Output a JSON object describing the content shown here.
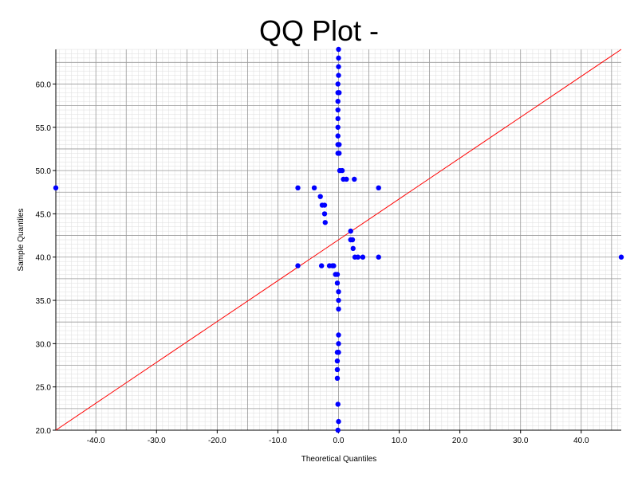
{
  "chart_data": {
    "type": "scatter",
    "title": "QQ Plot -",
    "xlabel": "Theoretical Quantiles",
    "ylabel": "Sample Quantiles",
    "xlim": [
      -46.6,
      46.6
    ],
    "ylim": [
      20.0,
      64.0
    ],
    "grid": true,
    "x_ticks": [
      -40.0,
      -30.0,
      -20.0,
      -10.0,
      0.0,
      10.0,
      20.0,
      30.0,
      40.0
    ],
    "x_tick_labels": [
      "-40.0",
      "-30.0",
      "-20.0",
      "-10.0",
      "0.0",
      "10.0",
      "20.0",
      "30.0",
      "40.0"
    ],
    "y_ticks": [
      20.0,
      25.0,
      30.0,
      35.0,
      40.0,
      45.0,
      50.0,
      55.0,
      60.0
    ],
    "y_tick_labels": [
      "20.0",
      "25.0",
      "30.0",
      "35.0",
      "40.0",
      "45.0",
      "50.0",
      "55.0",
      "60.0"
    ],
    "colors": {
      "points": "#0000ff",
      "reference_line": "#ff0000",
      "major_grid": "#999999",
      "minor_grid": "#dddddd"
    },
    "reference_line": {
      "x": [
        -46.6,
        46.6
      ],
      "y": [
        20.0,
        64.0
      ]
    },
    "points": [
      {
        "x": -46.6,
        "y": 48
      },
      {
        "x": 46.6,
        "y": 40
      },
      {
        "x": -6.7,
        "y": 48
      },
      {
        "x": -6.7,
        "y": 39
      },
      {
        "x": -4.0,
        "y": 48
      },
      {
        "x": -3.0,
        "y": 47
      },
      {
        "x": -2.7,
        "y": 46
      },
      {
        "x": -2.3,
        "y": 46
      },
      {
        "x": -2.3,
        "y": 45
      },
      {
        "x": -2.2,
        "y": 44
      },
      {
        "x": -2.8,
        "y": 39
      },
      {
        "x": -1.5,
        "y": 39
      },
      {
        "x": -1.0,
        "y": 39
      },
      {
        "x": -0.8,
        "y": 39
      },
      {
        "x": -0.5,
        "y": 38
      },
      {
        "x": -0.2,
        "y": 38
      },
      {
        "x": -0.2,
        "y": 37
      },
      {
        "x": 0.0,
        "y": 36
      },
      {
        "x": 0.0,
        "y": 35
      },
      {
        "x": 0.0,
        "y": 34
      },
      {
        "x": 0.0,
        "y": 31
      },
      {
        "x": 0.0,
        "y": 30
      },
      {
        "x": -0.2,
        "y": 29
      },
      {
        "x": 0.0,
        "y": 29
      },
      {
        "x": -0.2,
        "y": 28
      },
      {
        "x": -0.2,
        "y": 27
      },
      {
        "x": -0.2,
        "y": 26
      },
      {
        "x": -0.1,
        "y": 23
      },
      {
        "x": 0.0,
        "y": 21
      },
      {
        "x": -0.1,
        "y": 20
      },
      {
        "x": 0.0,
        "y": 64
      },
      {
        "x": 0.0,
        "y": 63
      },
      {
        "x": 0.0,
        "y": 62
      },
      {
        "x": 0.0,
        "y": 61
      },
      {
        "x": -0.1,
        "y": 60
      },
      {
        "x": -0.1,
        "y": 59
      },
      {
        "x": 0.1,
        "y": 59
      },
      {
        "x": -0.1,
        "y": 58
      },
      {
        "x": -0.1,
        "y": 57
      },
      {
        "x": -0.1,
        "y": 56
      },
      {
        "x": -0.1,
        "y": 55
      },
      {
        "x": -0.1,
        "y": 54
      },
      {
        "x": -0.1,
        "y": 53
      },
      {
        "x": 0.1,
        "y": 53
      },
      {
        "x": -0.1,
        "y": 52
      },
      {
        "x": 0.1,
        "y": 52
      },
      {
        "x": 0.2,
        "y": 50
      },
      {
        "x": 0.6,
        "y": 50
      },
      {
        "x": 0.8,
        "y": 49
      },
      {
        "x": 1.3,
        "y": 49
      },
      {
        "x": 2.6,
        "y": 49
      },
      {
        "x": 6.6,
        "y": 48
      },
      {
        "x": 2.0,
        "y": 43
      },
      {
        "x": 2.0,
        "y": 42
      },
      {
        "x": 2.3,
        "y": 42
      },
      {
        "x": 2.4,
        "y": 41
      },
      {
        "x": 2.7,
        "y": 40
      },
      {
        "x": 3.2,
        "y": 40
      },
      {
        "x": 4.0,
        "y": 40
      },
      {
        "x": 6.6,
        "y": 40
      }
    ]
  }
}
